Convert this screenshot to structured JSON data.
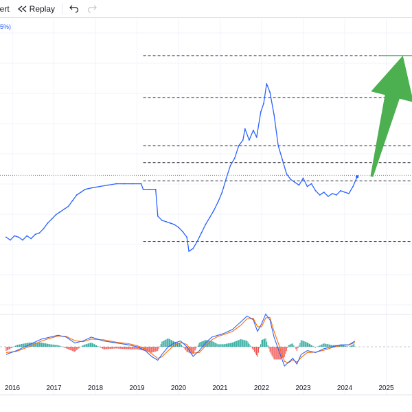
{
  "toolbar": {
    "alert_label": "lert",
    "replay_label": "Replay",
    "replay_icon": "rewind-icon",
    "undo_icon": "undo-icon",
    "redo_icon": "redo-icon"
  },
  "legend_fragment": "5%)",
  "colors": {
    "price_line": "#2962ff",
    "macd_line": "#2962ff",
    "signal_line": "#ff6d00",
    "hist_pos": "#26a69a",
    "hist_neg": "#ef5350",
    "arrow": "#4caf50",
    "dashed": "#131722"
  },
  "chart_data": {
    "type": "line",
    "xlabel": "",
    "ylabel": "",
    "x_tick_labels": [
      "2016",
      "2017",
      "2018",
      "2019",
      "2020",
      "2021",
      "2022",
      "2023",
      "2024",
      "2025"
    ],
    "x_range": [
      2015.85,
      2025.7
    ],
    "price_scale": "relative (no price axis visible)",
    "y_range": [
      0,
      100
    ],
    "series": [
      {
        "role": "price",
        "points": [
          [
            2015.85,
            25.5
          ],
          [
            2015.95,
            24.5
          ],
          [
            2016.05,
            26
          ],
          [
            2016.15,
            25.5
          ],
          [
            2016.25,
            24.5
          ],
          [
            2016.35,
            26
          ],
          [
            2016.45,
            25
          ],
          [
            2016.55,
            26.5
          ],
          [
            2016.65,
            27
          ],
          [
            2016.75,
            28.5
          ],
          [
            2016.85,
            30.5
          ],
          [
            2016.95,
            32
          ],
          [
            2017.05,
            33.5
          ],
          [
            2017.15,
            34.5
          ],
          [
            2017.25,
            35.5
          ],
          [
            2017.35,
            36.5
          ],
          [
            2017.45,
            38.5
          ],
          [
            2017.55,
            40.5
          ],
          [
            2017.65,
            41.5
          ],
          [
            2017.75,
            42.5
          ],
          [
            2017.9,
            43
          ],
          [
            2018.1,
            43.5
          ],
          [
            2018.3,
            44
          ],
          [
            2018.5,
            44.5
          ],
          [
            2018.7,
            44.5
          ],
          [
            2018.9,
            44.5
          ],
          [
            2019.1,
            44.5
          ],
          [
            2019.15,
            42.5
          ],
          [
            2019.3,
            42.5
          ],
          [
            2019.45,
            42.5
          ],
          [
            2019.5,
            33
          ],
          [
            2019.6,
            31.5
          ],
          [
            2019.7,
            31
          ],
          [
            2019.8,
            30.5
          ],
          [
            2019.9,
            30
          ],
          [
            2020.0,
            29
          ],
          [
            2020.1,
            27.5
          ],
          [
            2020.2,
            25.5
          ],
          [
            2020.25,
            20.5
          ],
          [
            2020.35,
            21.5
          ],
          [
            2020.45,
            24
          ],
          [
            2020.55,
            27
          ],
          [
            2020.65,
            30
          ],
          [
            2020.75,
            32.5
          ],
          [
            2020.85,
            35
          ],
          [
            2020.95,
            38
          ],
          [
            2021.05,
            41.5
          ],
          [
            2021.15,
            46.5
          ],
          [
            2021.25,
            51
          ],
          [
            2021.35,
            53.5
          ],
          [
            2021.45,
            58
          ],
          [
            2021.55,
            60
          ],
          [
            2021.6,
            64
          ],
          [
            2021.7,
            60
          ],
          [
            2021.8,
            63.5
          ],
          [
            2021.88,
            61
          ],
          [
            2021.98,
            70
          ],
          [
            2022.05,
            73
          ],
          [
            2022.12,
            80
          ],
          [
            2022.2,
            77
          ],
          [
            2022.3,
            69
          ],
          [
            2022.4,
            58
          ],
          [
            2022.5,
            53
          ],
          [
            2022.6,
            48
          ],
          [
            2022.7,
            46
          ],
          [
            2022.8,
            45
          ],
          [
            2022.9,
            44
          ],
          [
            2023.0,
            46.5
          ],
          [
            2023.1,
            43.5
          ],
          [
            2023.2,
            44.5
          ],
          [
            2023.3,
            42
          ],
          [
            2023.4,
            40.5
          ],
          [
            2023.5,
            41.5
          ],
          [
            2023.6,
            40
          ],
          [
            2023.7,
            41
          ],
          [
            2023.8,
            40.5
          ],
          [
            2023.9,
            42
          ],
          [
            2024.0,
            41.5
          ],
          [
            2024.1,
            41
          ],
          [
            2024.2,
            43.5
          ],
          [
            2024.3,
            47
          ]
        ]
      },
      {
        "role": "macd",
        "points": [
          [
            2015.85,
            -2
          ],
          [
            2016.1,
            -1
          ],
          [
            2016.4,
            0.5
          ],
          [
            2016.7,
            2
          ],
          [
            2016.9,
            2.5
          ],
          [
            2017.1,
            3
          ],
          [
            2017.3,
            2.5
          ],
          [
            2017.5,
            1
          ],
          [
            2017.7,
            1.5
          ],
          [
            2017.9,
            2.5
          ],
          [
            2018.2,
            1.5
          ],
          [
            2018.5,
            1
          ],
          [
            2018.8,
            0.5
          ],
          [
            2019.0,
            0
          ],
          [
            2019.2,
            -1
          ],
          [
            2019.35,
            -2.5
          ],
          [
            2019.5,
            -3.5
          ],
          [
            2019.6,
            -2
          ],
          [
            2019.75,
            0
          ],
          [
            2019.9,
            1
          ],
          [
            2020.05,
            1.5
          ],
          [
            2020.2,
            0
          ],
          [
            2020.35,
            -2.5
          ],
          [
            2020.5,
            -1
          ],
          [
            2020.65,
            1
          ],
          [
            2020.8,
            2.5
          ],
          [
            2020.95,
            3
          ],
          [
            2021.1,
            3.5
          ],
          [
            2021.3,
            4.5
          ],
          [
            2021.5,
            6.5
          ],
          [
            2021.65,
            8
          ],
          [
            2021.8,
            7
          ],
          [
            2021.9,
            4
          ],
          [
            2022.0,
            6
          ],
          [
            2022.1,
            8.5
          ],
          [
            2022.2,
            7
          ],
          [
            2022.3,
            2.5
          ],
          [
            2022.45,
            -2
          ],
          [
            2022.55,
            -5
          ],
          [
            2022.65,
            -4
          ],
          [
            2022.75,
            -3
          ],
          [
            2022.85,
            -4.5
          ],
          [
            2022.95,
            -2
          ],
          [
            2023.1,
            -1
          ],
          [
            2023.3,
            -1.5
          ],
          [
            2023.5,
            -0.5
          ],
          [
            2023.7,
            0
          ],
          [
            2023.9,
            0.5
          ],
          [
            2024.1,
            0.5
          ],
          [
            2024.25,
            1.5
          ]
        ]
      },
      {
        "role": "signal",
        "points": [
          [
            2015.85,
            -1.5
          ],
          [
            2016.1,
            -1.2
          ],
          [
            2016.4,
            0
          ],
          [
            2016.7,
            1.5
          ],
          [
            2016.9,
            2.2
          ],
          [
            2017.1,
            2.8
          ],
          [
            2017.3,
            2.7
          ],
          [
            2017.5,
            1.6
          ],
          [
            2017.7,
            1.3
          ],
          [
            2017.9,
            2
          ],
          [
            2018.2,
            1.8
          ],
          [
            2018.5,
            1.2
          ],
          [
            2018.8,
            0.8
          ],
          [
            2019.0,
            0.3
          ],
          [
            2019.2,
            -0.5
          ],
          [
            2019.35,
            -1.8
          ],
          [
            2019.5,
            -3
          ],
          [
            2019.6,
            -2.6
          ],
          [
            2019.75,
            -1
          ],
          [
            2019.9,
            0.4
          ],
          [
            2020.05,
            1.1
          ],
          [
            2020.2,
            0.6
          ],
          [
            2020.35,
            -1.6
          ],
          [
            2020.5,
            -1.5
          ],
          [
            2020.65,
            0.2
          ],
          [
            2020.8,
            1.8
          ],
          [
            2020.95,
            2.7
          ],
          [
            2021.1,
            3.2
          ],
          [
            2021.3,
            4
          ],
          [
            2021.5,
            5.6
          ],
          [
            2021.65,
            7.3
          ],
          [
            2021.8,
            7.4
          ],
          [
            2021.9,
            5.2
          ],
          [
            2022.0,
            5.2
          ],
          [
            2022.1,
            7.5
          ],
          [
            2022.2,
            7.6
          ],
          [
            2022.3,
            4
          ],
          [
            2022.45,
            -0.5
          ],
          [
            2022.55,
            -3.8
          ],
          [
            2022.65,
            -4.2
          ],
          [
            2022.75,
            -3.4
          ],
          [
            2022.85,
            -4
          ],
          [
            2022.95,
            -2.8
          ],
          [
            2023.1,
            -1.5
          ],
          [
            2023.3,
            -1.4
          ],
          [
            2023.5,
            -0.9
          ],
          [
            2023.7,
            -0.2
          ],
          [
            2023.9,
            0.3
          ],
          [
            2024.1,
            0.5
          ],
          [
            2024.25,
            1.1
          ]
        ]
      }
    ],
    "annotations": {
      "horizontal_dashed_levels": [
        90,
        75,
        58,
        52,
        45.5,
        24
      ],
      "current_price_dotted_level": 47.5,
      "arrow": {
        "from": [
          2024.65,
          47
        ],
        "to": [
          2025.4,
          90
        ],
        "color": "green"
      },
      "target_line_level": 90
    },
    "grid": true
  }
}
